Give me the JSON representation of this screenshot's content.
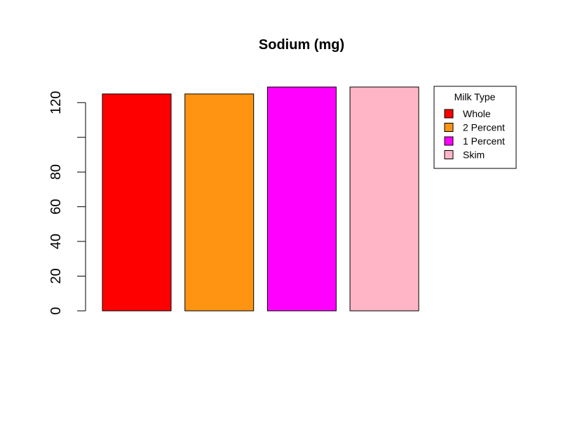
{
  "chart_data": {
    "type": "bar",
    "title": "Sodium (mg)",
    "xlabel": "",
    "ylabel": "",
    "categories": [
      "Whole",
      "2 Percent",
      "1 Percent",
      "Skim"
    ],
    "values": [
      125,
      125,
      129,
      129
    ],
    "colors": [
      "#ff0000",
      "#ff9412",
      "#ff00ff",
      "#ffb5c5"
    ],
    "ylim": [
      0,
      129
    ],
    "yticks": [
      0,
      20,
      40,
      60,
      80,
      100,
      120
    ],
    "ytick_labels": [
      "0",
      "20",
      "40",
      "60",
      "80",
      "",
      "120"
    ],
    "grid": false,
    "legend": {
      "title": "Milk Type",
      "placement": "top-right",
      "entries": [
        "Whole",
        "2 Percent",
        "1 Percent",
        "Skim"
      ]
    }
  }
}
